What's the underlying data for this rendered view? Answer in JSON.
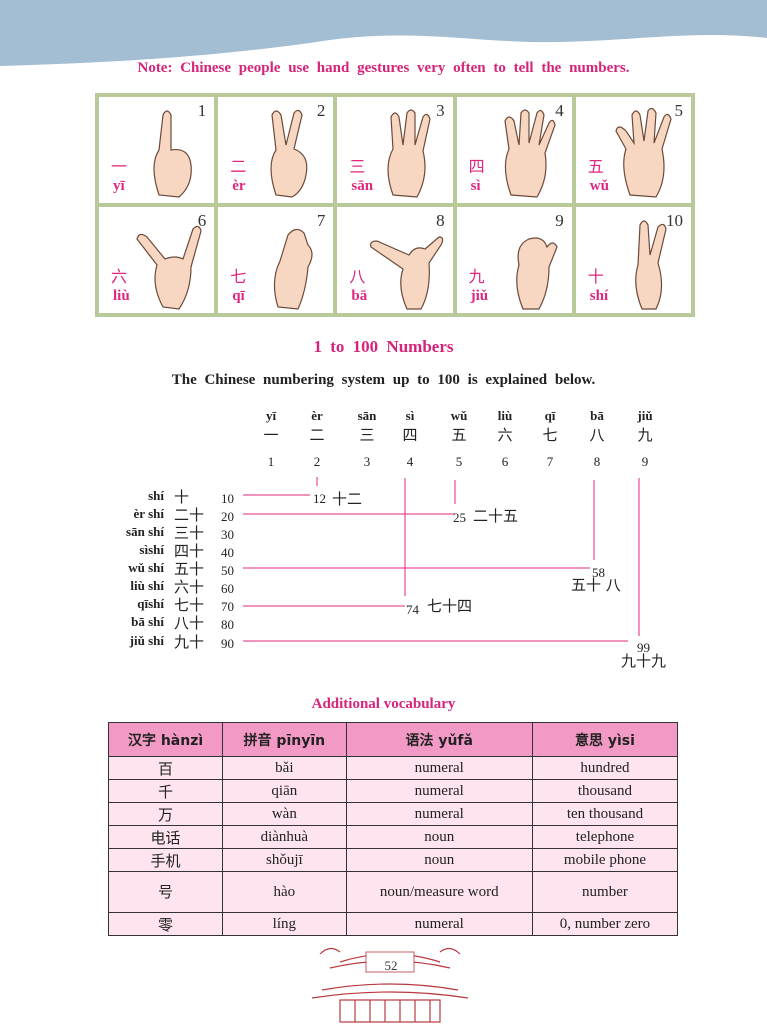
{
  "note": "Note: Chinese people use hand gestures very often to tell the numbers.",
  "gestures": [
    {
      "num": "1",
      "han": "一",
      "py": "yī"
    },
    {
      "num": "2",
      "han": "二",
      "py": "èr"
    },
    {
      "num": "3",
      "han": "三",
      "py": "sān"
    },
    {
      "num": "4",
      "han": "四",
      "py": "sì"
    },
    {
      "num": "5",
      "han": "五",
      "py": "wǔ"
    },
    {
      "num": "6",
      "han": "六",
      "py": "liù"
    },
    {
      "num": "7",
      "han": "七",
      "py": "qī"
    },
    {
      "num": "8",
      "han": "八",
      "py": "bā"
    },
    {
      "num": "9",
      "han": "九",
      "py": "jiǔ"
    },
    {
      "num": "10",
      "han": "十",
      "py": "shí"
    }
  ],
  "section_title": "1 to 100 Numbers",
  "intro": "The Chinese numbering system up to 100 is explained below.",
  "top_row": [
    {
      "py": "yī",
      "han": "一",
      "num": "1"
    },
    {
      "py": "èr",
      "han": "二",
      "num": "2"
    },
    {
      "py": "sān",
      "han": "三",
      "num": "3"
    },
    {
      "py": "sì",
      "han": "四",
      "num": "4"
    },
    {
      "py": "wǔ",
      "han": "五",
      "num": "5"
    },
    {
      "py": "liù",
      "han": "六",
      "num": "6"
    },
    {
      "py": "qī",
      "han": "七",
      "num": "7"
    },
    {
      "py": "bā",
      "han": "八",
      "num": "8"
    },
    {
      "py": "jiǔ",
      "han": "九",
      "num": "9"
    }
  ],
  "tens": [
    {
      "py": "shí",
      "han": "十",
      "num": "10"
    },
    {
      "py": "èr shí",
      "han": "二十",
      "num": "20"
    },
    {
      "py": "sān shí",
      "han": "三十",
      "num": "30"
    },
    {
      "py": "sìshí",
      "han": "四十",
      "num": "40"
    },
    {
      "py": "wǔ shí",
      "han": "五十",
      "num": "50"
    },
    {
      "py": "liù shí",
      "han": "六十",
      "num": "60"
    },
    {
      "py": "qīshí",
      "han": "七十",
      "num": "70"
    },
    {
      "py": "bā shí",
      "han": "八十",
      "num": "80"
    },
    {
      "py": "jiǔ shí",
      "han": "九十",
      "num": "90"
    }
  ],
  "examples": [
    {
      "num": "12",
      "han": "十二"
    },
    {
      "num": "25",
      "han": "二十五"
    },
    {
      "num": "58",
      "han": "五十 八"
    },
    {
      "num": "74",
      "han": "七十四"
    },
    {
      "num": "99",
      "han": "九十九"
    }
  ],
  "vocab_title": "Additional vocabulary",
  "vocab": {
    "headers": [
      "汉字 hànzì",
      "拼音 pīnyīn",
      "语法 yǔfǎ",
      "意思 yìsi"
    ],
    "rows": [
      [
        "百",
        "bǎi",
        "numeral",
        "hundred"
      ],
      [
        "千",
        "qiān",
        "numeral",
        "thousand"
      ],
      [
        "万",
        "wàn",
        "numeral",
        "ten thousand"
      ],
      [
        "电话",
        "diànhuà",
        "noun",
        "telephone"
      ],
      [
        "手机",
        "shǒujī",
        "noun",
        "mobile phone"
      ],
      [
        "号",
        "hào",
        "noun/measure word",
        "number"
      ],
      [
        "零",
        "líng",
        "numeral",
        "0, number zero"
      ]
    ]
  },
  "page_number": "52",
  "colors": {
    "accent": "#d6247a",
    "grid_frame": "#b9c99a",
    "table_header": "#f29ac5",
    "table_cell": "#fde4ef",
    "wave": "#a3bed2"
  }
}
